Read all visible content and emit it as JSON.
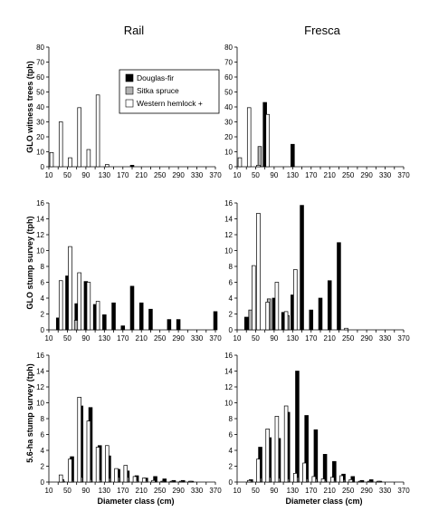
{
  "figure": {
    "columns": [
      "Rail",
      "Fresca"
    ],
    "x_axis_label": "Diameter class (cm)",
    "x_ticks": [
      10,
      50,
      90,
      130,
      170,
      210,
      250,
      290,
      330,
      370
    ],
    "legend": [
      {
        "label": "Douglas-fir",
        "color": "#000000"
      },
      {
        "label": "Sitka spruce",
        "color": "#b3b3b3"
      },
      {
        "label": "Western hemlock +",
        "color": "#ffffff"
      }
    ]
  },
  "chart_data": [
    {
      "type": "bar",
      "panel": "GLO witness trees / Rail",
      "ylabel": "GLO witness trees (tph)",
      "ylim": [
        0,
        80
      ],
      "y_ticks": [
        0,
        10,
        20,
        30,
        40,
        50,
        60,
        70,
        80
      ],
      "xlabel": "",
      "xlim": [
        10,
        370
      ],
      "series": [
        {
          "name": "Douglas-fir",
          "x": [
            190
          ],
          "values": [
            1
          ]
        },
        {
          "name": "Sitka spruce",
          "x": [],
          "values": []
        },
        {
          "name": "Western hemlock +",
          "x": [
            20,
            40,
            60,
            80,
            100,
            120,
            140
          ],
          "values": [
            9.5,
            30,
            6,
            39.5,
            11.5,
            48,
            1.5
          ]
        }
      ]
    },
    {
      "type": "bar",
      "panel": "GLO witness trees / Fresca",
      "ylabel": "",
      "ylim": [
        0,
        80
      ],
      "y_ticks": [
        0,
        10,
        20,
        30,
        40,
        50,
        60,
        70,
        80
      ],
      "xlabel": "",
      "xlim": [
        10,
        370
      ],
      "series": [
        {
          "name": "Douglas-fir",
          "x": [
            70,
            130
          ],
          "values": [
            43,
            15
          ]
        },
        {
          "name": "Sitka spruce",
          "x": [
            60
          ],
          "values": [
            13.5
          ]
        },
        {
          "name": "Western hemlock +",
          "x": [
            20,
            40,
            60,
            80
          ],
          "values": [
            6,
            39.5,
            1,
            35
          ]
        }
      ]
    },
    {
      "type": "bar",
      "panel": "GLO stump survey / Rail",
      "ylabel": "GLO stump survey (tph)",
      "ylim": [
        0,
        16
      ],
      "y_ticks": [
        0,
        2,
        4,
        6,
        8,
        10,
        12,
        14,
        16
      ],
      "xlabel": "",
      "xlim": [
        10,
        370
      ],
      "series": [
        {
          "name": "Douglas-fir",
          "x": [
            30,
            50,
            70,
            90,
            110,
            130,
            150,
            170,
            190,
            210,
            230,
            270,
            290,
            370
          ],
          "values": [
            1.5,
            6.8,
            3.3,
            6.1,
            3.2,
            1.9,
            3.4,
            0.5,
            5.5,
            3.4,
            2.6,
            1.3,
            1.3,
            2.3
          ]
        },
        {
          "name": "Sitka spruce",
          "x": [
            70
          ],
          "values": [
            1.2
          ]
        },
        {
          "name": "Western hemlock +",
          "x": [
            40,
            60,
            80,
            100,
            120
          ],
          "values": [
            6.2,
            10.5,
            7.2,
            6,
            3.6
          ]
        }
      ]
    },
    {
      "type": "bar",
      "panel": "GLO stump survey / Fresca",
      "ylabel": "",
      "ylim": [
        0,
        16
      ],
      "y_ticks": [
        0,
        2,
        4,
        6,
        8,
        10,
        12,
        14,
        16
      ],
      "xlabel": "",
      "xlim": [
        10,
        370
      ],
      "series": [
        {
          "name": "Douglas-fir",
          "x": [
            30,
            90,
            110,
            130,
            150,
            170,
            190,
            210,
            230
          ],
          "values": [
            1.6,
            4,
            2.2,
            4.4,
            15.7,
            2.5,
            4,
            6.2,
            11
          ]
        },
        {
          "name": "Sitka spruce",
          "x": [
            40,
            80,
            120
          ],
          "values": [
            2.5,
            3.9,
            1.8
          ]
        },
        {
          "name": "Western hemlock +",
          "x": [
            50,
            60,
            80,
            100,
            120,
            140,
            250
          ],
          "values": [
            8.1,
            14.7,
            3.5,
            6,
            2.3,
            7.6,
            0.2
          ]
        }
      ]
    },
    {
      "type": "bar",
      "panel": "5.6-ha stump survey / Rail",
      "ylabel": "5.6-ha stump survey (tph)",
      "ylim": [
        0,
        16
      ],
      "y_ticks": [
        0,
        2,
        4,
        6,
        8,
        10,
        12,
        14,
        16
      ],
      "xlabel": "Diameter class (cm)",
      "xlim": [
        10,
        370
      ],
      "series": [
        {
          "name": "Douglas-fir",
          "x": [
            40,
            60,
            80,
            100,
            120,
            140,
            160,
            180,
            200,
            220,
            240,
            260,
            280,
            300
          ],
          "values": [
            0.1,
            3.2,
            9.6,
            9.4,
            4.6,
            3.3,
            1.6,
            1.4,
            0.8,
            0.5,
            0.7,
            0.4,
            0.2,
            0.2
          ]
        },
        {
          "name": "Sitka spruce",
          "x": [
            40,
            60,
            80,
            100,
            120,
            140,
            160,
            180,
            200,
            220,
            240,
            260,
            280,
            300,
            320
          ],
          "values": [
            0.3,
            0.2,
            0.6,
            0.3,
            0.3,
            0.5,
            0.6,
            0.6,
            0.2,
            0.2,
            0.1,
            0.1,
            0.1,
            0.1,
            0.1
          ]
        },
        {
          "name": "Western hemlock +",
          "x": [
            40,
            60,
            80,
            100,
            120,
            140,
            160,
            180,
            200,
            220,
            240,
            260,
            280,
            300,
            320
          ],
          "values": [
            0.9,
            2.9,
            10.7,
            7.7,
            4.4,
            4.6,
            1.7,
            2.1,
            0.7,
            0.5,
            0.2,
            0.1,
            0.1,
            0.1,
            0.1
          ]
        }
      ]
    },
    {
      "type": "bar",
      "panel": "5.6-ha stump survey / Fresca",
      "ylabel": "",
      "ylim": [
        0,
        16
      ],
      "y_ticks": [
        0,
        2,
        4,
        6,
        8,
        10,
        12,
        14,
        16
      ],
      "xlabel": "Diameter class (cm)",
      "xlim": [
        10,
        370
      ],
      "series": [
        {
          "name": "Douglas-fir",
          "x": [
            40,
            60,
            80,
            100,
            120,
            140,
            160,
            180,
            200,
            220,
            240,
            260,
            280,
            300
          ],
          "values": [
            0.3,
            4.4,
            5.6,
            5.5,
            8.8,
            14,
            8.4,
            6.6,
            3.5,
            2.6,
            1,
            0.7,
            0.2,
            0.3
          ]
        },
        {
          "name": "Sitka spruce",
          "x": [
            40,
            60,
            80,
            100,
            120,
            140,
            160,
            180,
            200,
            220,
            240,
            260,
            280,
            300,
            320
          ],
          "values": [
            0.2,
            0.5,
            0.6,
            0.5,
            0.4,
            0.6,
            0.4,
            0.4,
            0.2,
            0.2,
            0.3,
            0.1,
            0.1,
            0.1,
            0.1
          ]
        },
        {
          "name": "Western hemlock +",
          "x": [
            40,
            60,
            80,
            100,
            120,
            140,
            160,
            180,
            200,
            220,
            240,
            260,
            280,
            300,
            320
          ],
          "values": [
            0.2,
            2.9,
            6.7,
            8.3,
            9.6,
            1.1,
            2.4,
            0.7,
            0.4,
            0.6,
            0.8,
            0.3,
            0.1,
            0.1,
            0.1
          ]
        }
      ]
    }
  ]
}
